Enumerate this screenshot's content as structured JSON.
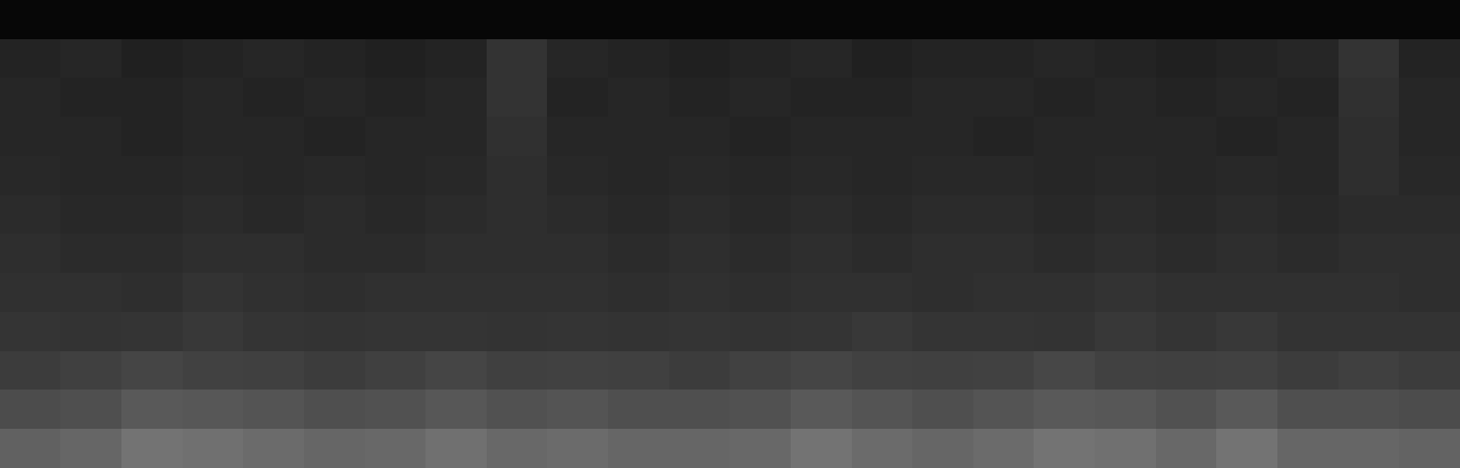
{
  "chart_data": {
    "type": "heatmap",
    "color": "gray",
    "tick_labels": false,
    "zlim": [
      0,
      1
    ],
    "cells": [
      [
        0.03,
        0.03,
        0.03,
        0.03,
        0.03,
        0.03,
        0.03,
        0.03,
        0.03,
        0.03,
        0.03,
        0.03,
        0.03,
        0.03,
        0.03,
        0.03,
        0.03,
        0.03,
        0.03,
        0.03,
        0.03,
        0.03,
        0.03,
        0.03
      ],
      [
        0.14,
        0.15,
        0.13,
        0.14,
        0.15,
        0.14,
        0.13,
        0.14,
        0.2,
        0.15,
        0.14,
        0.13,
        0.14,
        0.15,
        0.13,
        0.14,
        0.14,
        0.15,
        0.14,
        0.13,
        0.14,
        0.15,
        0.2,
        0.14
      ],
      [
        0.15,
        0.14,
        0.14,
        0.15,
        0.14,
        0.15,
        0.14,
        0.15,
        0.2,
        0.14,
        0.15,
        0.14,
        0.15,
        0.14,
        0.14,
        0.15,
        0.15,
        0.14,
        0.15,
        0.14,
        0.15,
        0.14,
        0.19,
        0.15
      ],
      [
        0.15,
        0.15,
        0.14,
        0.15,
        0.15,
        0.14,
        0.15,
        0.15,
        0.19,
        0.15,
        0.15,
        0.15,
        0.14,
        0.15,
        0.15,
        0.15,
        0.14,
        0.15,
        0.15,
        0.15,
        0.14,
        0.15,
        0.18,
        0.15
      ],
      [
        0.16,
        0.15,
        0.15,
        0.16,
        0.15,
        0.16,
        0.15,
        0.16,
        0.18,
        0.16,
        0.15,
        0.16,
        0.15,
        0.16,
        0.15,
        0.16,
        0.16,
        0.15,
        0.16,
        0.15,
        0.16,
        0.15,
        0.18,
        0.16
      ],
      [
        0.17,
        0.16,
        0.16,
        0.17,
        0.16,
        0.17,
        0.16,
        0.17,
        0.18,
        0.17,
        0.16,
        0.17,
        0.16,
        0.17,
        0.16,
        0.17,
        0.17,
        0.16,
        0.17,
        0.16,
        0.17,
        0.16,
        0.17,
        0.17
      ],
      [
        0.18,
        0.17,
        0.17,
        0.18,
        0.18,
        0.17,
        0.17,
        0.18,
        0.18,
        0.18,
        0.17,
        0.18,
        0.17,
        0.18,
        0.17,
        0.18,
        0.18,
        0.17,
        0.18,
        0.17,
        0.18,
        0.17,
        0.18,
        0.18
      ],
      [
        0.19,
        0.19,
        0.18,
        0.2,
        0.19,
        0.18,
        0.19,
        0.19,
        0.19,
        0.19,
        0.18,
        0.19,
        0.18,
        0.19,
        0.19,
        0.18,
        0.19,
        0.19,
        0.2,
        0.19,
        0.19,
        0.19,
        0.19,
        0.18
      ],
      [
        0.21,
        0.2,
        0.21,
        0.22,
        0.21,
        0.2,
        0.21,
        0.21,
        0.2,
        0.21,
        0.2,
        0.21,
        0.2,
        0.21,
        0.22,
        0.21,
        0.21,
        0.2,
        0.22,
        0.21,
        0.22,
        0.2,
        0.2,
        0.2
      ],
      [
        0.24,
        0.25,
        0.27,
        0.26,
        0.25,
        0.24,
        0.25,
        0.27,
        0.25,
        0.26,
        0.25,
        0.24,
        0.26,
        0.27,
        0.26,
        0.25,
        0.26,
        0.28,
        0.26,
        0.25,
        0.26,
        0.24,
        0.25,
        0.24
      ],
      [
        0.3,
        0.31,
        0.35,
        0.34,
        0.33,
        0.31,
        0.32,
        0.34,
        0.32,
        0.33,
        0.31,
        0.31,
        0.32,
        0.35,
        0.33,
        0.31,
        0.33,
        0.35,
        0.34,
        0.32,
        0.35,
        0.31,
        0.31,
        0.3
      ],
      [
        0.38,
        0.4,
        0.45,
        0.44,
        0.42,
        0.4,
        0.41,
        0.44,
        0.41,
        0.42,
        0.4,
        0.4,
        0.41,
        0.45,
        0.42,
        0.4,
        0.42,
        0.45,
        0.44,
        0.41,
        0.45,
        0.4,
        0.4,
        0.39
      ]
    ]
  }
}
